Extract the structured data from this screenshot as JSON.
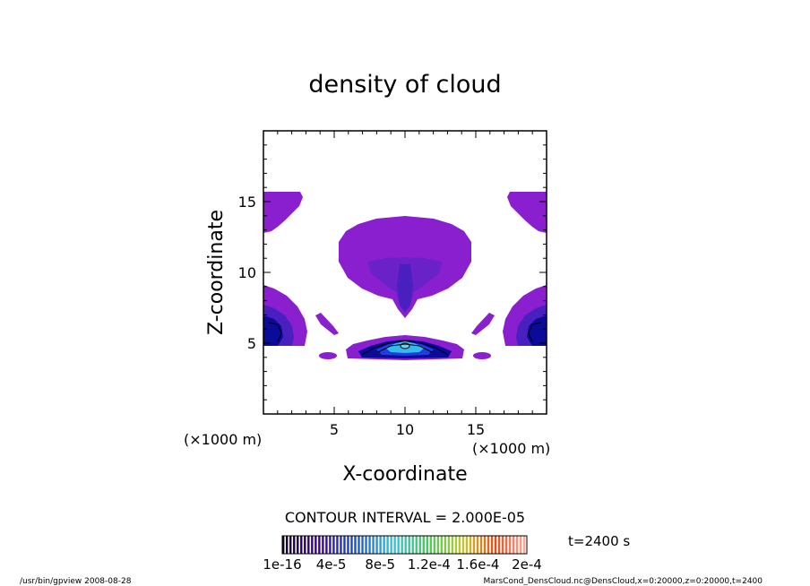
{
  "chart_data": {
    "type": "contour",
    "title": "density of cloud",
    "xlabel": "X-coordinate",
    "ylabel": "Z-coordinate",
    "x_unit": "(×1000 m)",
    "z_unit": "(×1000 m)",
    "xlim": [
      0,
      20
    ],
    "zlim": [
      0,
      20
    ],
    "x_ticks": [
      5,
      10,
      15
    ],
    "z_ticks": [
      5,
      10,
      15
    ],
    "contour_interval_text": "CONTOUR INTERVAL = 2.000E-05",
    "time_text": "t=2400 s",
    "colorbar": {
      "labels": [
        "1e-16",
        "4e-5",
        "8e-5",
        "1.2e-4",
        "1.6e-4",
        "2e-4"
      ],
      "levels": [
        1e-16,
        4e-05,
        8e-05,
        0.00012,
        0.00016,
        0.0002
      ]
    },
    "regions": [
      {
        "name": "central-cloud",
        "x_center": 10,
        "z_center": 10.8
      },
      {
        "name": "left-upper-cloud",
        "x_center": 1,
        "z_center": 14.3
      },
      {
        "name": "right-upper-cloud",
        "x_center": 19,
        "z_center": 14.3
      },
      {
        "name": "left-mid-cloud",
        "x_center": 1,
        "z_center": 6.6
      },
      {
        "name": "right-mid-cloud",
        "x_center": 19,
        "z_center": 6.6
      },
      {
        "name": "lower-central-cloud",
        "x_center": 10,
        "z_center": 4.8
      }
    ]
  },
  "footer": {
    "left": "/usr/bin/gpview   2008-08-28",
    "right": "MarsCond_DensCloud.nc@DensCloud,x=0:20000,z=0:20000,t=2400"
  },
  "colors": {
    "light_purple": "#8a1fd0",
    "purple": "#6a22c8",
    "indigo": "#4a1fc0",
    "blue": "#1f3ce0",
    "dark_blue": "#0b0b9a",
    "cyan": "#37b9f0",
    "light_cyan": "#5fd8f5"
  }
}
